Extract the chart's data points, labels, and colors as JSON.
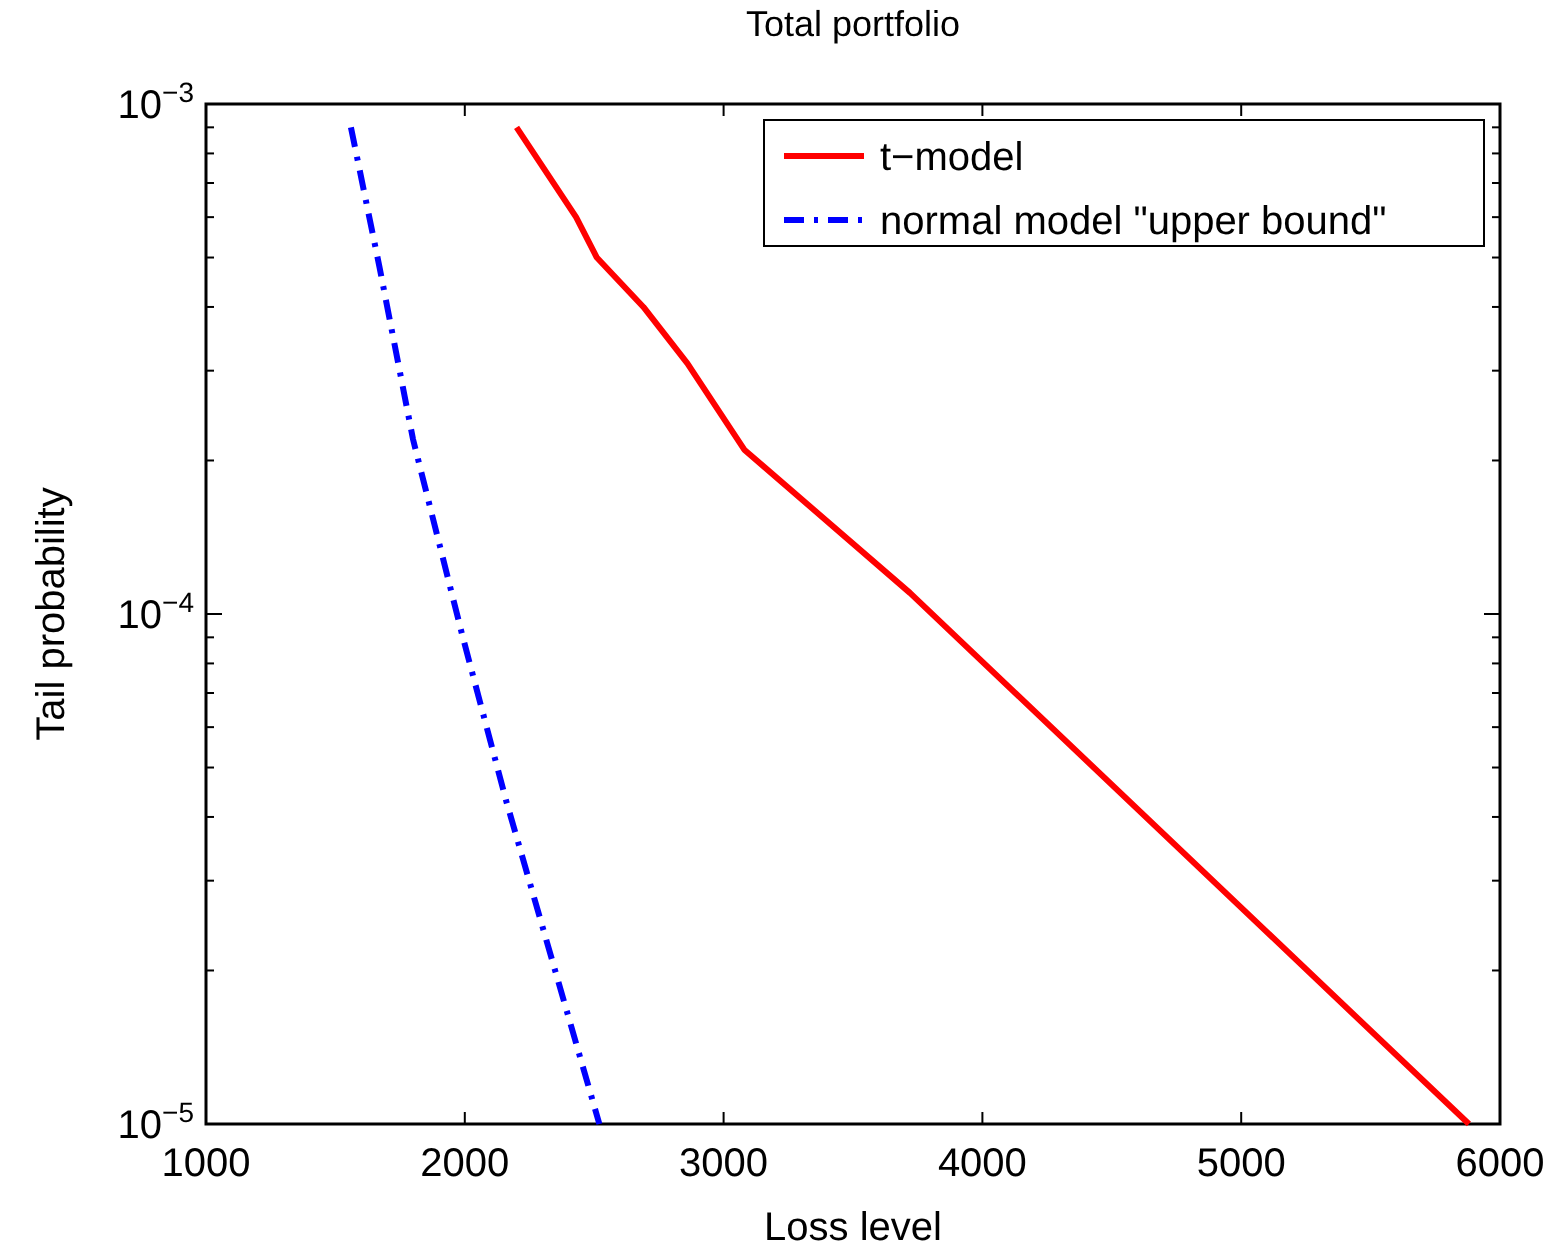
{
  "chart_data": {
    "type": "line",
    "title": "Total portfolio",
    "xlabel": "Loss level",
    "ylabel": "Tail probability",
    "log": "y",
    "legend": "top right",
    "xlim": [
      1000,
      6000
    ],
    "xticks": [
      1000,
      2000,
      3000,
      4000,
      5000,
      6000
    ],
    "ylim": [
      1e-05,
      0.001
    ],
    "yticks": [
      {
        "value": 1e-05,
        "label": "10$^{−5}$"
      },
      {
        "value": 2e-05,
        "label": null
      },
      {
        "value": 3e-05,
        "label": null
      },
      {
        "value": 4e-05,
        "label": null
      },
      {
        "value": 5e-05,
        "label": null
      },
      {
        "value": 6e-05,
        "label": null
      },
      {
        "value": 7e-05,
        "label": null
      },
      {
        "value": 8e-05,
        "label": null
      },
      {
        "value": 9e-05,
        "label": null
      },
      {
        "value": 0.0001,
        "label": "10$^{−4}$"
      },
      {
        "value": 0.0002,
        "label": null
      },
      {
        "value": 0.0003,
        "label": null
      },
      {
        "value": 0.0004,
        "label": null
      },
      {
        "value": 0.0005,
        "label": null
      },
      {
        "value": 0.0006,
        "label": null
      },
      {
        "value": 0.0007,
        "label": null
      },
      {
        "value": 0.0008,
        "label": null
      },
      {
        "value": 0.0009,
        "label": null
      },
      {
        "value": 0.001,
        "label": "10$^{−3}$"
      }
    ],
    "series": [
      {
        "name": "t−model",
        "color": "#ff0000",
        "line_style": "solid",
        "x": [
          2200,
          2430,
          2510,
          2690,
          2860,
          3080,
          3720,
          5880
        ],
        "values": [
          0.0009,
          0.0006,
          0.0005,
          0.0004,
          0.00031,
          0.00021,
          0.00011,
          1e-05
        ]
      },
      {
        "name": "normal model \"upper bound\"",
        "color": "#0000ff",
        "line_style": "dashed",
        "x": [
          1560,
          1670,
          1800,
          1990,
          2160,
          2520
        ],
        "values": [
          0.0009,
          0.00048,
          0.00022,
          9.1e-05,
          4.3e-05,
          1e-05
        ]
      }
    ]
  }
}
